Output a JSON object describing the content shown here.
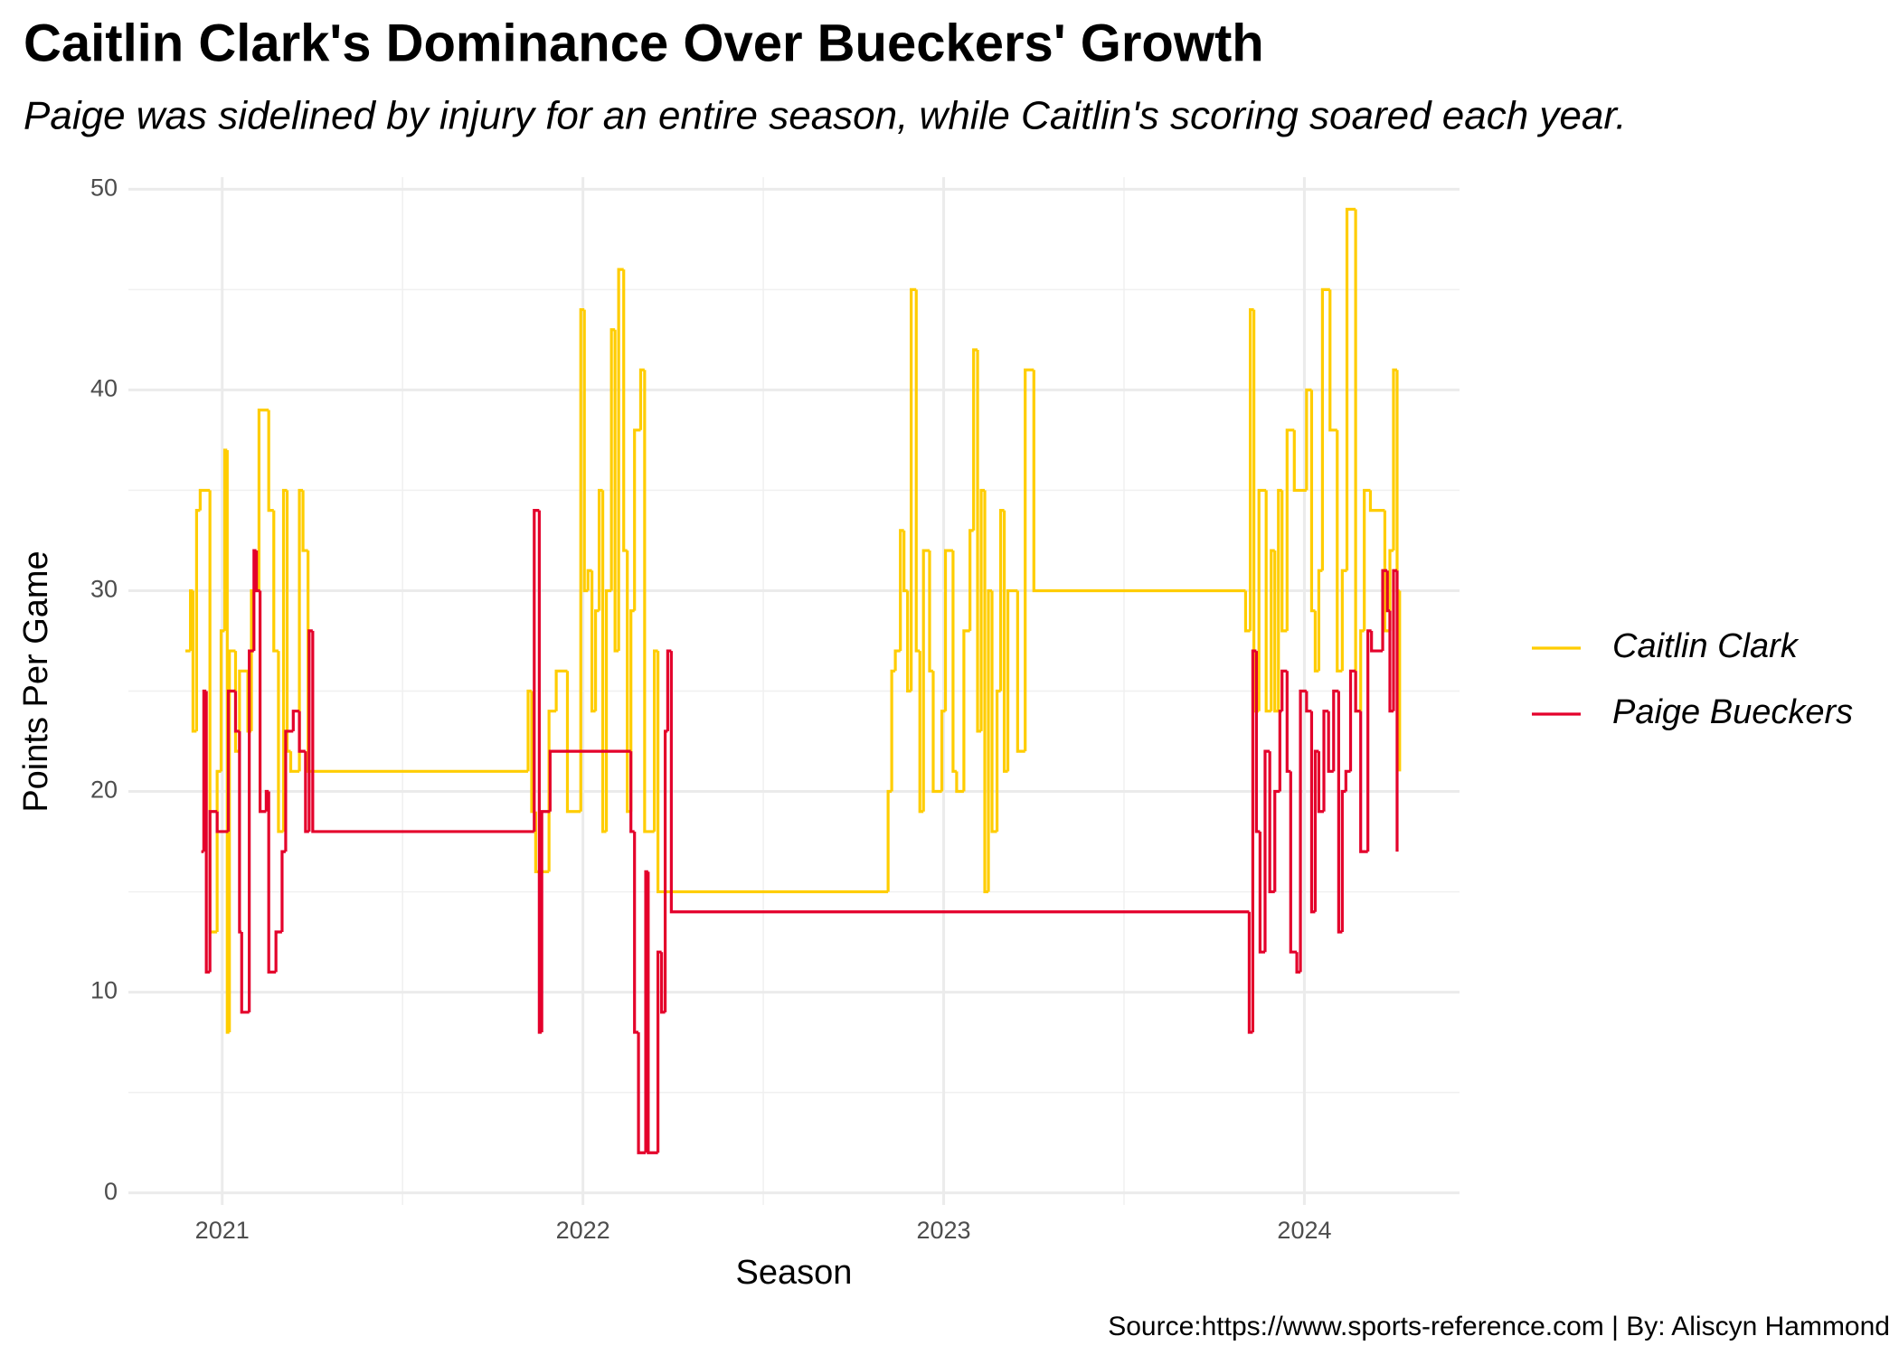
{
  "chart_data": {
    "type": "step",
    "title": "Caitlin Clark's Dominance Over Bueckers' Growth",
    "subtitle": "Paige was sidelined by injury for an entire season, while Caitlin's scoring soared each year.",
    "x_label": "Season",
    "y_label": "Points Per Game",
    "caption": "Source:https://www.sports-reference.com | By: Aliscyn Hammond",
    "xlim": [
      2020.74,
      2024.43
    ],
    "xticks": [
      2021,
      2022,
      2023,
      2024
    ],
    "xminor": [
      2021.5,
      2022.5,
      2023.5
    ],
    "ylim": [
      -0.6,
      50.6
    ],
    "yticks": [
      0,
      10,
      20,
      30,
      40,
      50
    ],
    "yminor": [
      5,
      15,
      25,
      35,
      45
    ],
    "grid": true,
    "legend": "right",
    "series": [
      {
        "name": "Caitlin Clark",
        "color": "#ffcd00",
        "x": [
          2020.898,
          2020.912,
          2020.919,
          2020.929,
          2020.939,
          2020.966,
          2020.986,
          2020.997,
          2021.007,
          2021.014,
          2021.02,
          2021.037,
          2021.048,
          2021.071,
          2021.081,
          2021.102,
          2021.129,
          2021.143,
          2021.156,
          2021.17,
          2021.18,
          2021.19,
          2021.214,
          2021.224,
          2021.238,
          2021.848,
          2021.858,
          2021.869,
          2021.906,
          2021.926,
          2021.957,
          2021.994,
          2022.004,
          2022.014,
          2022.025,
          2022.035,
          2022.045,
          2022.055,
          2022.065,
          2022.079,
          2022.089,
          2022.099,
          2022.113,
          2022.123,
          2022.133,
          2022.143,
          2022.16,
          2022.171,
          2022.198,
          2022.208,
          2022.846,
          2022.856,
          2022.866,
          2022.88,
          2022.89,
          2022.9,
          2022.91,
          2022.924,
          2022.934,
          2022.944,
          2022.961,
          2022.971,
          2022.995,
          2023.005,
          2023.026,
          2023.036,
          2023.056,
          2023.073,
          2023.083,
          2023.094,
          2023.104,
          2023.114,
          2023.124,
          2023.134,
          2023.148,
          2023.158,
          2023.168,
          2023.178,
          2023.205,
          2023.226,
          2023.25,
          2023.837,
          2023.85,
          2023.86,
          2023.874,
          2023.894,
          2023.908,
          2023.918,
          2023.928,
          2023.938,
          2023.952,
          2023.972,
          2024.006,
          2024.02,
          2024.03,
          2024.04,
          2024.05,
          2024.071,
          2024.091,
          2024.105,
          2024.118,
          2024.142,
          2024.156,
          2024.166,
          2024.183,
          2024.223,
          2024.237,
          2024.247,
          2024.257,
          2024.264
        ],
        "values": [
          27,
          30,
          23,
          34,
          35,
          13,
          21,
          28,
          37,
          8,
          27,
          22,
          26,
          23,
          30,
          39,
          34,
          27,
          18,
          35,
          22,
          21,
          35,
          32,
          21,
          25,
          19,
          16,
          24,
          26,
          19,
          44,
          30,
          31,
          24,
          29,
          35,
          18,
          30,
          43,
          27,
          46,
          32,
          19,
          29,
          38,
          41,
          18,
          27,
          15,
          20,
          26,
          27,
          33,
          30,
          25,
          45,
          27,
          19,
          32,
          26,
          20,
          24,
          32,
          21,
          20,
          28,
          33,
          42,
          23,
          35,
          15,
          30,
          18,
          25,
          34,
          21,
          30,
          22,
          41,
          30,
          28,
          44,
          24,
          35,
          24,
          32,
          24,
          35,
          28,
          38,
          35,
          40,
          29,
          26,
          31,
          45,
          38,
          26,
          31,
          49,
          24,
          28,
          35,
          34,
          28,
          32,
          41,
          30,
          21
        ]
      },
      {
        "name": "Paige Bueckers",
        "color": "#e4002b",
        "x": [
          2020.942,
          2020.949,
          2020.956,
          2020.966,
          2020.986,
          2021.017,
          2021.037,
          2021.048,
          2021.054,
          2021.075,
          2021.088,
          2021.095,
          2021.105,
          2021.122,
          2021.129,
          2021.149,
          2021.166,
          2021.176,
          2021.197,
          2021.214,
          2021.231,
          2021.241,
          2021.251,
          2021.865,
          2021.879,
          2021.886,
          2021.909,
          2022.133,
          2022.143,
          2022.154,
          2022.174,
          2022.181,
          2022.208,
          2022.218,
          2022.228,
          2022.235,
          2022.245,
          2023.847,
          2023.857,
          2023.867,
          2023.877,
          2023.891,
          2023.904,
          2023.918,
          2023.932,
          2023.938,
          2023.952,
          2023.962,
          2023.979,
          2023.989,
          2024.006,
          2024.02,
          2024.03,
          2024.04,
          2024.054,
          2024.067,
          2024.081,
          2024.095,
          2024.105,
          2024.115,
          2024.128,
          2024.142,
          2024.156,
          2024.176,
          2024.186,
          2024.217,
          2024.23,
          2024.237,
          2024.247,
          2024.257
        ],
        "values": [
          17,
          25,
          11,
          19,
          18,
          25,
          23,
          13,
          9,
          27,
          32,
          30,
          19,
          20,
          11,
          13,
          17,
          23,
          24,
          22,
          18,
          28,
          18,
          34,
          8,
          19,
          22,
          18,
          8,
          2,
          16,
          2,
          12,
          9,
          23,
          27,
          14,
          8,
          27,
          18,
          12,
          22,
          15,
          20,
          24,
          26,
          21,
          12,
          11,
          25,
          24,
          14,
          22,
          19,
          24,
          21,
          25,
          13,
          20,
          21,
          26,
          24,
          17,
          28,
          27,
          31,
          29,
          24,
          31,
          17
        ]
      }
    ]
  }
}
